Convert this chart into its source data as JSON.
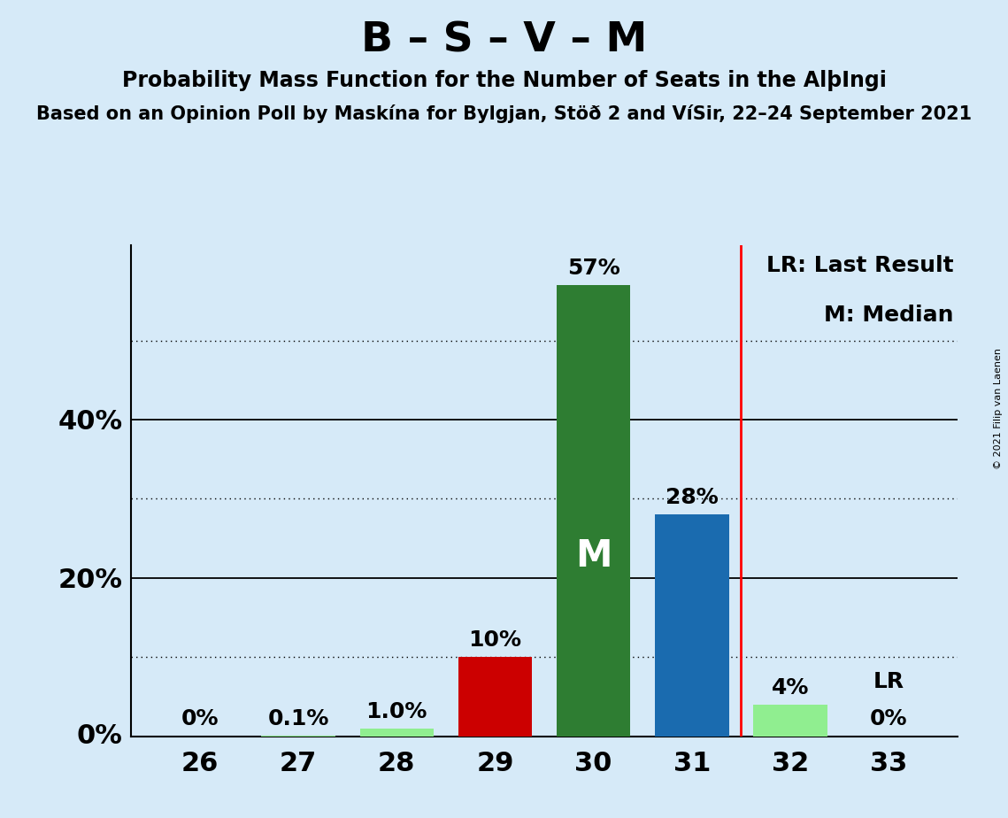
{
  "title": "B – S – V – M",
  "subtitle": "Probability Mass Function for the Number of Seats in the AlþIngi",
  "subsubtitle": "Based on an Opinion Poll by Maskína for Bylgjan, Stöð 2 and VíSir, 22–24 September 2021",
  "copyright": "© 2021 Filip van Laenen",
  "seats": [
    26,
    27,
    28,
    29,
    30,
    31,
    32,
    33
  ],
  "values": [
    0.0,
    0.1,
    1.0,
    10.0,
    57.0,
    28.0,
    4.0,
    0.0
  ],
  "labels": [
    "0%",
    "0.1%",
    "1.0%",
    "10%",
    "57%",
    "28%",
    "4%",
    "0%"
  ],
  "bar_colors": [
    "#90EE90",
    "#90EE90",
    "#90EE90",
    "#CC0000",
    "#2E7D32",
    "#1A6BAF",
    "#90EE90",
    "#90EE90"
  ],
  "median_seat": 30,
  "lr_seat": 31.5,
  "background_color": "#D6EAF8",
  "yticks_solid": [
    20,
    40
  ],
  "yticks_dotted": [
    10,
    30,
    50
  ],
  "ytick_labels": [
    0,
    20,
    40
  ],
  "ylim": [
    0,
    62
  ],
  "legend_lr": "LR: Last Result",
  "legend_m": "M: Median"
}
